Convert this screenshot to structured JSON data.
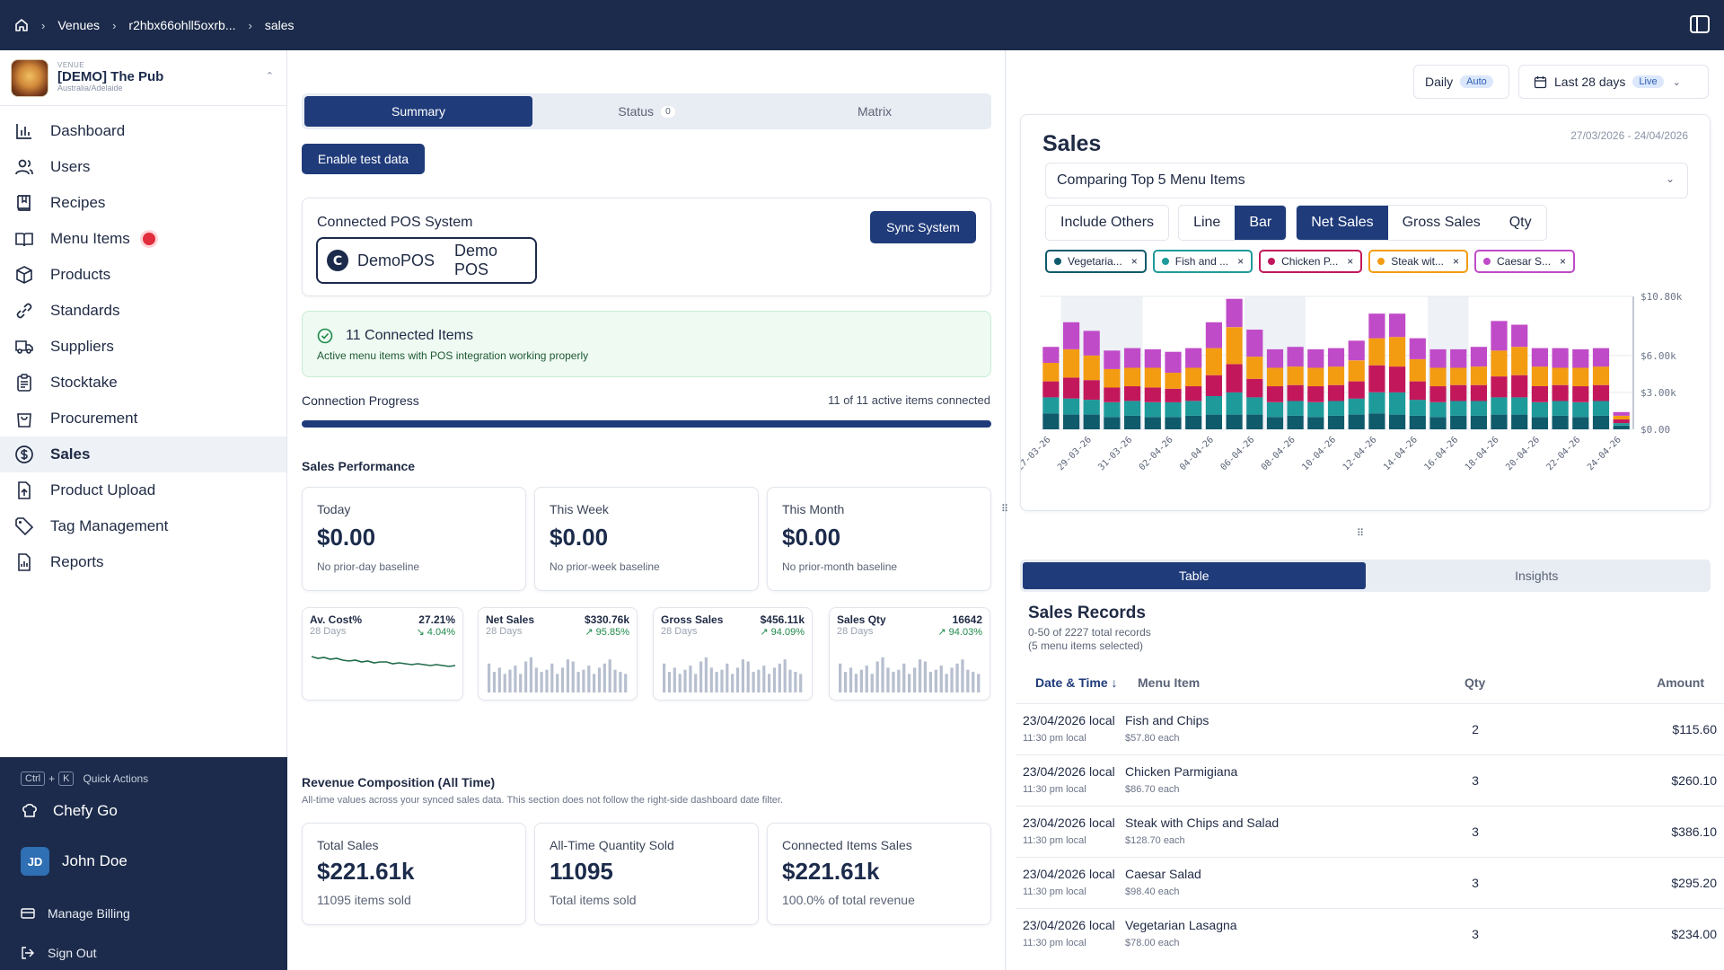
{
  "breadcrumb": {
    "venues": "Venues",
    "venue_id": "r2hbx66ohll5oxrb...",
    "current": "sales"
  },
  "venue": {
    "kicker": "VENUE",
    "name": "[DEMO] The Pub",
    "location": "Australia/Adelaide"
  },
  "nav": [
    {
      "label": "Dashboard",
      "icon": "bar-chart-icon"
    },
    {
      "label": "Users",
      "icon": "users-icon"
    },
    {
      "label": "Recipes",
      "icon": "book-icon"
    },
    {
      "label": "Menu Items",
      "icon": "menu-book-icon",
      "badge": true
    },
    {
      "label": "Products",
      "icon": "box-icon"
    },
    {
      "label": "Standards",
      "icon": "link-icon"
    },
    {
      "label": "Suppliers",
      "icon": "truck-icon"
    },
    {
      "label": "Stocktake",
      "icon": "clipboard-icon"
    },
    {
      "label": "Procurement",
      "icon": "bag-icon"
    },
    {
      "label": "Sales",
      "icon": "dollar-icon",
      "active": true
    },
    {
      "label": "Product Upload",
      "icon": "upload-icon"
    },
    {
      "label": "Tag Management",
      "icon": "tag-icon"
    },
    {
      "label": "Reports",
      "icon": "report-icon"
    }
  ],
  "sidebar_bottom": {
    "kbd_ctrl": "Ctrl",
    "kbd_plus": "+",
    "kbd_k": "K",
    "quick_actions": "Quick Actions",
    "chefy_go": "Chefy Go",
    "user_initials": "JD",
    "user_name": "John Doe",
    "billing": "Manage Billing",
    "sign_out": "Sign Out"
  },
  "main": {
    "tabs": [
      {
        "label": "Summary"
      },
      {
        "label": "Status",
        "badge": "0"
      },
      {
        "label": "Matrix"
      }
    ],
    "enable_test": "Enable test data",
    "pos": {
      "title": "Connected POS System",
      "sync": "Sync System",
      "logo_word": "DemoPOS",
      "name": "Demo POS"
    },
    "connected": {
      "title": "11 Connected Items",
      "sub": "Active menu items with POS integration working properly"
    },
    "progress": {
      "label": "Connection Progress",
      "text": "11 of 11 active items connected",
      "fraction": 1.0
    },
    "perf_title": "Sales Performance",
    "perf": [
      {
        "label": "Today",
        "value": "$0.00",
        "sub": "No prior-day baseline"
      },
      {
        "label": "This Week",
        "value": "$0.00",
        "sub": "No prior-week baseline"
      },
      {
        "label": "This Month",
        "value": "$0.00",
        "sub": "No prior-month baseline"
      }
    ],
    "minis": [
      {
        "title": "Av. Cost%",
        "sub": "28 Days",
        "value": "27.21%",
        "delta": "↘ 4.04%",
        "type": "line"
      },
      {
        "title": "Net Sales",
        "sub": "28 Days",
        "value": "$330.76k",
        "delta": "↗ 95.85%",
        "type": "bar"
      },
      {
        "title": "Gross Sales",
        "sub": "28 Days",
        "value": "$456.11k",
        "delta": "↗ 94.09%",
        "type": "bar"
      },
      {
        "title": "Sales Qty",
        "sub": "28 Days",
        "value": "16642",
        "delta": "↗ 94.03%",
        "type": "bar"
      }
    ],
    "revenue": {
      "title": "Revenue Composition (All Time)",
      "sub": "All-time values across your synced sales data. This section does not follow the right-side dashboard date filter.",
      "cards": [
        {
          "label": "Total Sales",
          "value": "$221.61k",
          "sub": "11095 items sold"
        },
        {
          "label": "All-Time Quantity Sold",
          "value": "11095",
          "sub": "Total items sold"
        },
        {
          "label": "Connected Items Sales",
          "value": "$221.61k",
          "sub": "100.0% of total revenue"
        }
      ]
    }
  },
  "right": {
    "daily": "Daily",
    "auto": "Auto",
    "range": "Last 28 days",
    "live": "Live",
    "sales_title": "Sales",
    "date_range": "27/03/2026 - 24/04/2026",
    "compare": "Comparing Top 5 Menu Items",
    "include_others": "Include Others",
    "line": "Line",
    "bar": "Bar",
    "net": "Net Sales",
    "gross": "Gross Sales",
    "qty": "Qty",
    "chips": [
      {
        "label": "Vegetaria...",
        "color": "#0f5a6b"
      },
      {
        "label": "Fish and ...",
        "color": "#1e9a9a"
      },
      {
        "label": "Chicken P...",
        "color": "#c2185b"
      },
      {
        "label": "Steak wit...",
        "color": "#f39c12"
      },
      {
        "label": "Caesar S...",
        "color": "#c04bc8"
      }
    ],
    "lower_tabs": [
      "Table",
      "Insights"
    ],
    "records_title": "Sales Records",
    "records_sub1": "0-50 of 2227 total records",
    "records_sub2": "(5 menu items selected)",
    "cols": {
      "date": "Date & Time ↓",
      "item": "Menu Item",
      "qty": "Qty",
      "amount": "Amount"
    },
    "rows": [
      {
        "date": "23/04/2026 local",
        "time": "11:30 pm local",
        "item": "Fish and Chips",
        "each": "$57.80 each",
        "qty": "2",
        "amount": "$115.60"
      },
      {
        "date": "23/04/2026 local",
        "time": "11:30 pm local",
        "item": "Chicken Parmigiana",
        "each": "$86.70 each",
        "qty": "3",
        "amount": "$260.10"
      },
      {
        "date": "23/04/2026 local",
        "time": "11:30 pm local",
        "item": "Steak with Chips and Salad",
        "each": "$128.70 each",
        "qty": "3",
        "amount": "$386.10"
      },
      {
        "date": "23/04/2026 local",
        "time": "11:30 pm local",
        "item": "Caesar Salad",
        "each": "$98.40 each",
        "qty": "3",
        "amount": "$295.20"
      },
      {
        "date": "23/04/2026 local",
        "time": "11:30 pm local",
        "item": "Vegetarian Lasagna",
        "each": "$78.00 each",
        "qty": "3",
        "amount": "$234.00"
      }
    ]
  },
  "chart_data": {
    "type": "bar",
    "stacked": true,
    "ylim": [
      0,
      10800
    ],
    "yticks": [
      "$10.80k",
      "$6.00k",
      "$3.00k",
      "$0.00"
    ],
    "ytick_values": [
      10800,
      6000,
      3000,
      0
    ],
    "categories": [
      "27-03-26",
      "28-03-26",
      "29-03-26",
      "30-03-26",
      "31-03-26",
      "01-04-26",
      "02-04-26",
      "03-04-26",
      "04-04-26",
      "05-04-26",
      "06-04-26",
      "07-04-26",
      "08-04-26",
      "09-04-26",
      "10-04-26",
      "11-04-26",
      "12-04-26",
      "13-04-26",
      "14-04-26",
      "15-04-26",
      "16-04-26",
      "17-04-26",
      "18-04-26",
      "19-04-26",
      "20-04-26",
      "21-04-26",
      "22-04-26",
      "23-04-26",
      "24-04-26"
    ],
    "xtick_labels": [
      "27-03-26",
      "29-03-26",
      "31-03-26",
      "02-04-26",
      "04-04-26",
      "06-04-26",
      "08-04-26",
      "10-04-26",
      "12-04-26",
      "14-04-26",
      "16-04-26",
      "18-04-26",
      "20-04-26",
      "22-04-26",
      "24-04-26"
    ],
    "series": [
      {
        "name": "Vegetarian Lasagna",
        "color": "#0f5a6b",
        "values": [
          1300,
          1200,
          1200,
          1000,
          1100,
          1000,
          1000,
          1100,
          1200,
          1200,
          1200,
          1000,
          1100,
          1000,
          1100,
          1200,
          1300,
          1200,
          1100,
          1000,
          1100,
          1100,
          1200,
          1200,
          1000,
          1100,
          1000,
          1100,
          300
        ]
      },
      {
        "name": "Fish and Chips",
        "color": "#1e9a9a",
        "values": [
          1300,
          1300,
          1200,
          1200,
          1200,
          1200,
          1200,
          1200,
          1500,
          1800,
          1400,
          1200,
          1200,
          1200,
          1200,
          1300,
          1700,
          1800,
          1300,
          1200,
          1200,
          1200,
          1400,
          1400,
          1200,
          1200,
          1200,
          1200,
          200
        ]
      },
      {
        "name": "Chicken Parmigiana",
        "color": "#c2185b",
        "values": [
          1300,
          1700,
          1600,
          1200,
          1200,
          1200,
          1100,
          1200,
          1700,
          2300,
          1500,
          1300,
          1300,
          1300,
          1300,
          1400,
          2200,
          2100,
          1500,
          1300,
          1300,
          1300,
          1700,
          1800,
          1300,
          1300,
          1300,
          1300,
          300
        ]
      },
      {
        "name": "Steak with Chips and Salad",
        "color": "#f39c12",
        "values": [
          1500,
          2300,
          2000,
          1500,
          1500,
          1600,
          1300,
          1500,
          2200,
          3000,
          1800,
          1500,
          1500,
          1500,
          1500,
          1700,
          2200,
          2400,
          1800,
          1500,
          1400,
          1500,
          2100,
          2300,
          1600,
          1400,
          1500,
          1500,
          300
        ]
      },
      {
        "name": "Caesar Salad",
        "color": "#c04bc8",
        "values": [
          1300,
          2200,
          2000,
          1500,
          1600,
          1500,
          1700,
          1600,
          2100,
          2300,
          2200,
          1500,
          1600,
          1500,
          1500,
          1600,
          2000,
          1900,
          1700,
          1500,
          1500,
          1600,
          2400,
          1800,
          1500,
          1600,
          1500,
          1500,
          300
        ]
      }
    ]
  }
}
